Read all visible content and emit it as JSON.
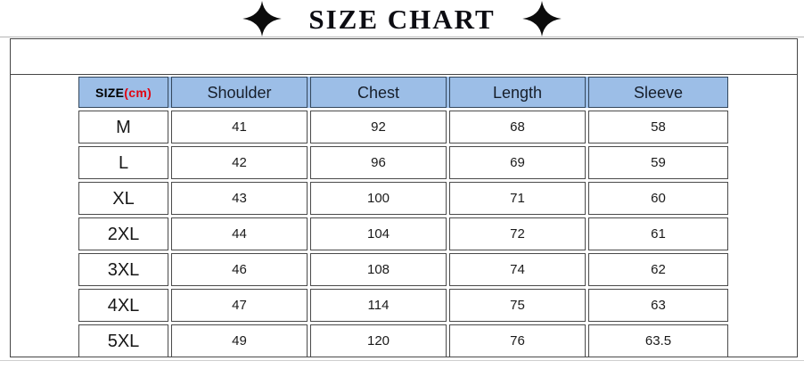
{
  "title": "SIZE CHART",
  "title_icons": {
    "left": "sparkle-star-icon",
    "right": "sparkle-star-icon"
  },
  "colors": {
    "title": "#0c0c12",
    "line": "#b5b5b5",
    "box_border": "#454545",
    "header_bg": "#9cbee7",
    "header_border": "#33475c",
    "body_border": "#4a4a4a",
    "unit": "#e00613"
  },
  "table": {
    "size_header": {
      "label": "SIZE",
      "unit": "(cm)"
    },
    "columns": [
      "Shoulder",
      "Chest",
      "Length",
      "Sleeve"
    ],
    "rows": [
      {
        "size": "M",
        "values": [
          "41",
          "92",
          "68",
          "58"
        ]
      },
      {
        "size": "L",
        "values": [
          "42",
          "96",
          "69",
          "59"
        ]
      },
      {
        "size": "XL",
        "values": [
          "43",
          "100",
          "71",
          "60"
        ]
      },
      {
        "size": "2XL",
        "values": [
          "44",
          "104",
          "72",
          "61"
        ]
      },
      {
        "size": "3XL",
        "values": [
          "46",
          "108",
          "74",
          "62"
        ]
      },
      {
        "size": "4XL",
        "values": [
          "47",
          "114",
          "75",
          "63"
        ]
      },
      {
        "size": "5XL",
        "values": [
          "49",
          "120",
          "76",
          "63.5"
        ]
      }
    ]
  },
  "chart_data": {
    "type": "table",
    "title": "SIZE CHART",
    "unit": "cm",
    "columns": [
      "SIZE(cm)",
      "Shoulder",
      "Chest",
      "Length",
      "Sleeve"
    ],
    "rows": [
      [
        "M",
        41,
        92,
        68,
        58
      ],
      [
        "L",
        42,
        96,
        69,
        59
      ],
      [
        "XL",
        43,
        100,
        71,
        60
      ],
      [
        "2XL",
        44,
        104,
        72,
        61
      ],
      [
        "3XL",
        46,
        108,
        74,
        62
      ],
      [
        "4XL",
        47,
        114,
        75,
        63
      ],
      [
        "5XL",
        49,
        120,
        76,
        63.5
      ]
    ]
  }
}
